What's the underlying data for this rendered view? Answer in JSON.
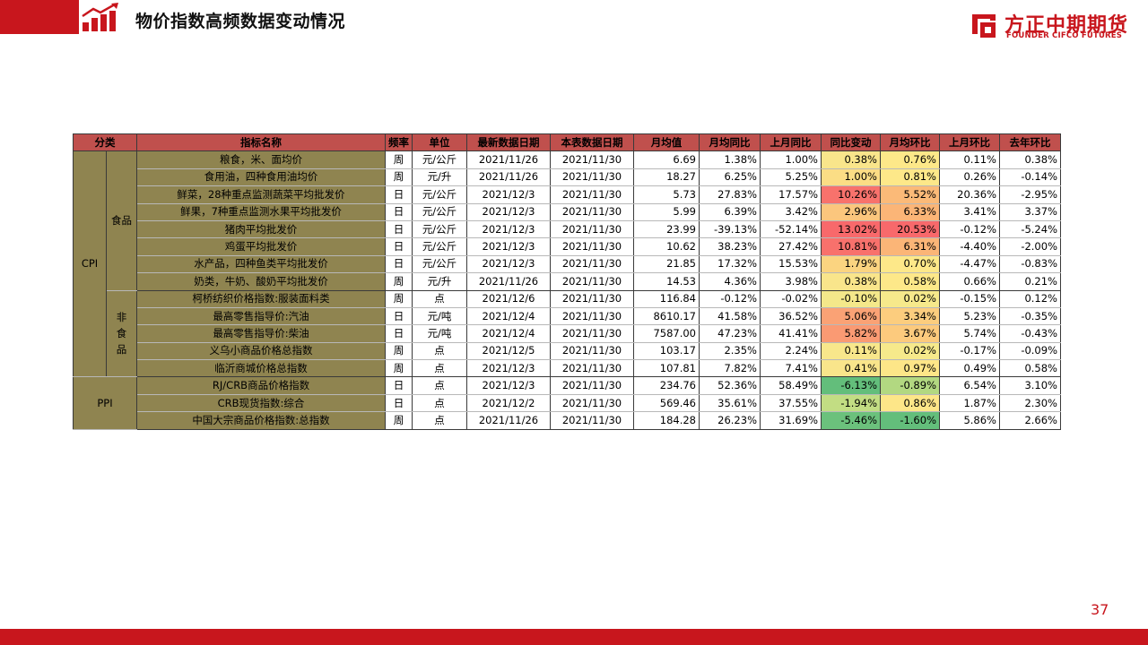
{
  "header": {
    "title": "物价指数高频数据变动情况",
    "logo_cn": "方正中期期货",
    "logo_en": "FOUNDER CIFCO FUTURES"
  },
  "table": {
    "headers": [
      "分类",
      "指标名称",
      "频率",
      "单位",
      "最新数据日期",
      "本表数据日期",
      "月均值",
      "月均同比",
      "上月同比",
      "同比变动",
      "月均环比",
      "上月环比",
      "去年环比"
    ],
    "groups": {
      "cpi": "CPI",
      "food": "食品",
      "nonfood": "非食品",
      "ppi": "PPI"
    },
    "rows": [
      {
        "name": "粮食，米、面均价",
        "freq": "周",
        "unit": "元/公斤",
        "latest": "2021/11/26",
        "table_date": "2021/11/30",
        "avg": "6.69",
        "yoy": "1.38%",
        "prev_yoy": "1.00%",
        "yoy_chg": "0.38%",
        "yoy_chg_color": "#f9e58b",
        "mom": "0.76%",
        "mom_color": "#fde889",
        "prev_mom": "0.11%",
        "ly_mom": "0.38%"
      },
      {
        "name": "食用油，四种食用油均价",
        "freq": "周",
        "unit": "元/升",
        "latest": "2021/11/26",
        "table_date": "2021/11/30",
        "avg": "18.27",
        "yoy": "6.25%",
        "prev_yoy": "5.25%",
        "yoy_chg": "1.00%",
        "yoy_chg_color": "#fbdd85",
        "mom": "0.81%",
        "mom_color": "#fde889",
        "prev_mom": "0.26%",
        "ly_mom": "-0.14%"
      },
      {
        "name": "鲜菜，28种重点监测蔬菜平均批发价",
        "freq": "日",
        "unit": "元/公斤",
        "latest": "2021/12/3",
        "table_date": "2021/11/30",
        "avg": "5.73",
        "yoy": "27.83%",
        "prev_yoy": "17.57%",
        "yoy_chg": "10.26%",
        "yoy_chg_color": "#f8726c",
        "mom": "5.52%",
        "mom_color": "#fbba78",
        "prev_mom": "20.36%",
        "ly_mom": "-2.95%"
      },
      {
        "name": "鲜果，7种重点监测水果平均批发价",
        "freq": "日",
        "unit": "元/公斤",
        "latest": "2021/12/3",
        "table_date": "2021/11/30",
        "avg": "5.99",
        "yoy": "6.39%",
        "prev_yoy": "3.42%",
        "yoy_chg": "2.96%",
        "yoy_chg_color": "#fbc67d",
        "mom": "6.33%",
        "mom_color": "#fbb577",
        "prev_mom": "3.41%",
        "ly_mom": "3.37%"
      },
      {
        "name": "猪肉平均批发价",
        "freq": "日",
        "unit": "元/公斤",
        "latest": "2021/12/3",
        "table_date": "2021/11/30",
        "avg": "23.99",
        "yoy": "-39.13%",
        "prev_yoy": "-52.14%",
        "yoy_chg": "13.02%",
        "yoy_chg_color": "#f8696b",
        "mom": "20.53%",
        "mom_color": "#f8696b",
        "prev_mom": "-0.12%",
        "ly_mom": "-5.24%"
      },
      {
        "name": "鸡蛋平均批发价",
        "freq": "日",
        "unit": "元/公斤",
        "latest": "2021/12/3",
        "table_date": "2021/11/30",
        "avg": "10.62",
        "yoy": "38.23%",
        "prev_yoy": "27.42%",
        "yoy_chg": "10.81%",
        "yoy_chg_color": "#f8716c",
        "mom": "6.31%",
        "mom_color": "#fbb577",
        "prev_mom": "-4.40%",
        "ly_mom": "-2.00%"
      },
      {
        "name": "水产品，四种鱼类平均批发价",
        "freq": "日",
        "unit": "元/公斤",
        "latest": "2021/12/3",
        "table_date": "2021/11/30",
        "avg": "21.85",
        "yoy": "17.32%",
        "prev_yoy": "15.53%",
        "yoy_chg": "1.79%",
        "yoy_chg_color": "#fbd480",
        "mom": "0.70%",
        "mom_color": "#fde889",
        "prev_mom": "-4.47%",
        "ly_mom": "-0.83%"
      },
      {
        "name": "奶类，牛奶、酸奶平均批发价",
        "freq": "周",
        "unit": "元/升",
        "latest": "2021/11/26",
        "table_date": "2021/11/30",
        "avg": "14.53",
        "yoy": "4.36%",
        "prev_yoy": "3.98%",
        "yoy_chg": "0.38%",
        "yoy_chg_color": "#f9e58b",
        "mom": "0.58%",
        "mom_color": "#fde889",
        "prev_mom": "0.66%",
        "ly_mom": "0.21%"
      },
      {
        "name": "柯桥纺织价格指数:服装面料类",
        "freq": "周",
        "unit": "点",
        "latest": "2021/12/6",
        "table_date": "2021/11/30",
        "avg": "116.84",
        "yoy": "-0.12%",
        "prev_yoy": "-0.02%",
        "yoy_chg": "-0.10%",
        "yoy_chg_color": "#f4e88a",
        "mom": "0.02%",
        "mom_color": "#f6e98b",
        "prev_mom": "-0.15%",
        "ly_mom": "0.12%"
      },
      {
        "name": "最高零售指导价:汽油",
        "freq": "日",
        "unit": "元/吨",
        "latest": "2021/12/4",
        "table_date": "2021/11/30",
        "avg": "8610.17",
        "yoy": "41.58%",
        "prev_yoy": "36.52%",
        "yoy_chg": "5.06%",
        "yoy_chg_color": "#faa275",
        "mom": "3.34%",
        "mom_color": "#fccd7e",
        "prev_mom": "5.23%",
        "ly_mom": "-0.35%"
      },
      {
        "name": "最高零售指导价:柴油",
        "freq": "日",
        "unit": "元/吨",
        "latest": "2021/12/4",
        "table_date": "2021/11/30",
        "avg": "7587.00",
        "yoy": "47.23%",
        "prev_yoy": "41.41%",
        "yoy_chg": "5.82%",
        "yoy_chg_color": "#fa9a73",
        "mom": "3.67%",
        "mom_color": "#fcca7d",
        "prev_mom": "5.74%",
        "ly_mom": "-0.43%"
      },
      {
        "name": "义乌小商品价格总指数",
        "freq": "周",
        "unit": "点",
        "latest": "2021/12/5",
        "table_date": "2021/11/30",
        "avg": "103.17",
        "yoy": "2.35%",
        "prev_yoy": "2.24%",
        "yoy_chg": "0.11%",
        "yoy_chg_color": "#f8e78b",
        "mom": "0.02%",
        "mom_color": "#f6e98b",
        "prev_mom": "-0.17%",
        "ly_mom": "-0.09%"
      },
      {
        "name": "临沂商城价格总指数",
        "freq": "周",
        "unit": "点",
        "latest": "2021/12/3",
        "table_date": "2021/11/30",
        "avg": "107.81",
        "yoy": "7.82%",
        "prev_yoy": "7.41%",
        "yoy_chg": "0.41%",
        "yoy_chg_color": "#f9e58b",
        "mom": "0.97%",
        "mom_color": "#fde688",
        "prev_mom": "0.49%",
        "ly_mom": "0.58%"
      },
      {
        "name": "RJ/CRB商品价格指数",
        "freq": "日",
        "unit": "点",
        "latest": "2021/12/3",
        "table_date": "2021/11/30",
        "avg": "234.76",
        "yoy": "52.36%",
        "prev_yoy": "58.49%",
        "yoy_chg": "-6.13%",
        "yoy_chg_color": "#63be7b",
        "mom": "-0.89%",
        "mom_color": "#b2d881",
        "prev_mom": "6.54%",
        "ly_mom": "3.10%"
      },
      {
        "name": "CRB现货指数:综合",
        "freq": "日",
        "unit": "点",
        "latest": "2021/12/2",
        "table_date": "2021/11/30",
        "avg": "569.46",
        "yoy": "35.61%",
        "prev_yoy": "37.55%",
        "yoy_chg": "-1.94%",
        "yoy_chg_color": "#c2dd83",
        "mom": "0.86%",
        "mom_color": "#fde688",
        "prev_mom": "1.87%",
        "ly_mom": "2.30%"
      },
      {
        "name": "中国大宗商品价格指数:总指数",
        "freq": "周",
        "unit": "点",
        "latest": "2021/11/26",
        "table_date": "2021/11/30",
        "avg": "184.28",
        "yoy": "26.23%",
        "prev_yoy": "31.69%",
        "yoy_chg": "-5.46%",
        "yoy_chg_color": "#6bc17c",
        "mom": "-1.60%",
        "mom_color": "#63be7b",
        "prev_mom": "5.86%",
        "ly_mom": "2.66%"
      }
    ]
  },
  "footer": {
    "page_number": "37"
  },
  "colors": {
    "brand_red": "#c8161d",
    "header_red": "#c0504d",
    "olive": "#8f8450"
  }
}
